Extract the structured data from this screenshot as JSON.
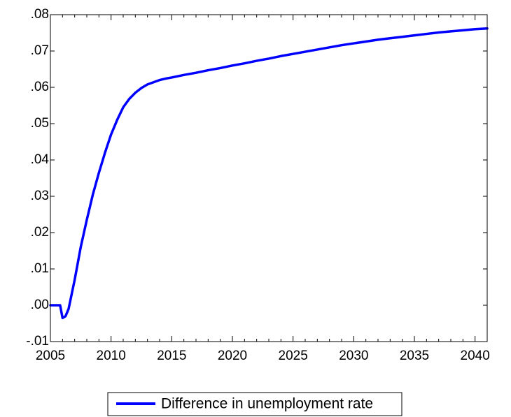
{
  "chart_data": {
    "type": "line",
    "title": "",
    "xlabel": "",
    "ylabel": "",
    "xlim": [
      2005,
      2041
    ],
    "ylim": [
      -0.01,
      0.08
    ],
    "x_ticks": [
      2005,
      2010,
      2015,
      2020,
      2025,
      2030,
      2035,
      2040
    ],
    "x_tick_labels": [
      "2005",
      "2010",
      "2015",
      "2020",
      "2025",
      "2030",
      "2035",
      "2040"
    ],
    "y_ticks": [
      -0.01,
      0.0,
      0.01,
      0.02,
      0.03,
      0.04,
      0.05,
      0.06,
      0.07,
      0.08
    ],
    "y_tick_labels": [
      "-.01",
      ".00",
      ".01",
      ".02",
      ".03",
      ".04",
      ".05",
      ".06",
      ".07",
      ".08"
    ],
    "grid": false,
    "legend_position": "bottom-center",
    "series": [
      {
        "name": "Difference in unemployment rate",
        "color": "#0000ff",
        "x": [
          2005.0,
          2005.5,
          2005.8,
          2006.0,
          2006.25,
          2006.5,
          2007.0,
          2007.5,
          2008.0,
          2008.5,
          2009.0,
          2009.5,
          2010.0,
          2010.5,
          2011.0,
          2011.5,
          2012.0,
          2012.5,
          2013.0,
          2013.5,
          2014.0,
          2014.5,
          2015.0,
          2016.0,
          2017.0,
          2018.0,
          2019.0,
          2020.0,
          2021.0,
          2022.0,
          2023.0,
          2024.0,
          2025.0,
          2026.0,
          2027.0,
          2028.0,
          2029.0,
          2030.0,
          2031.0,
          2032.0,
          2033.0,
          2034.0,
          2035.0,
          2036.0,
          2037.0,
          2038.0,
          2039.0,
          2040.0,
          2041.0
        ],
        "values": [
          0.0,
          0.0,
          0.0,
          -0.0035,
          -0.003,
          -0.001,
          0.007,
          0.016,
          0.0235,
          0.0305,
          0.0365,
          0.042,
          0.047,
          0.051,
          0.0545,
          0.0568,
          0.0585,
          0.0598,
          0.0608,
          0.0614,
          0.062,
          0.0624,
          0.0627,
          0.0634,
          0.064,
          0.0647,
          0.0653,
          0.066,
          0.0666,
          0.0673,
          0.0679,
          0.0686,
          0.0692,
          0.0698,
          0.0704,
          0.071,
          0.0716,
          0.0721,
          0.0726,
          0.0731,
          0.0735,
          0.0739,
          0.0743,
          0.0747,
          0.0751,
          0.0754,
          0.0757,
          0.076,
          0.0762
        ]
      }
    ]
  }
}
